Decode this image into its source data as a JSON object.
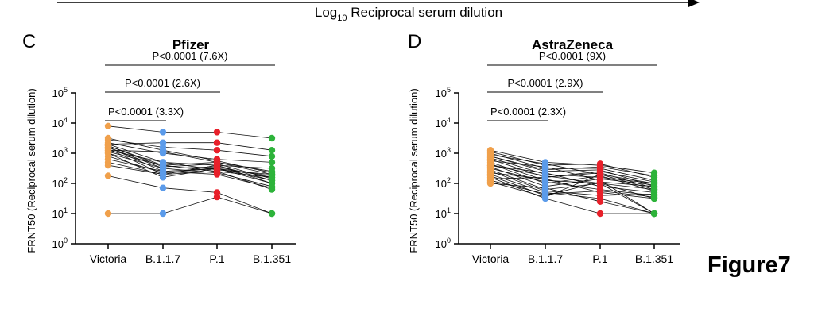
{
  "header": {
    "label_prefix": "Log",
    "label_sub": "10",
    "label_rest": " Reciprocal serum dilution"
  },
  "figure_label": "Figure7",
  "colors": {
    "Victoria": "#f0a04b",
    "B.1.1.7": "#5b9bea",
    "P.1": "#e8202a",
    "B.1.351": "#2db33a"
  },
  "chart_data": [
    {
      "panel": "C",
      "type": "scatter",
      "title": "Pfizer",
      "ylabel": "FRNT50  (Reciprocal serum dilution)",
      "yscale": "log10",
      "ylim": [
        1,
        100000
      ],
      "yticks": [
        {
          "base": "10",
          "exp": "0"
        },
        {
          "base": "10",
          "exp": "1"
        },
        {
          "base": "10",
          "exp": "2"
        },
        {
          "base": "10",
          "exp": "3"
        },
        {
          "base": "10",
          "exp": "4"
        },
        {
          "base": "10",
          "exp": "5"
        }
      ],
      "categories": [
        "Victoria",
        "B.1.1.7",
        "P.1",
        "B.1.351"
      ],
      "comparisons": [
        {
          "from": 0,
          "to": 3,
          "label": "P<0.0001 (7.6X)"
        },
        {
          "from": 0,
          "to": 2,
          "label": "P<0.0001 (2.6X)"
        },
        {
          "from": 0,
          "to": 1,
          "label": "P<0.0001 (3.3X)"
        }
      ],
      "log10_values_per_subject": [
        [
          3.9,
          3.7,
          3.7,
          3.5
        ],
        [
          3.3,
          3.35,
          3.35,
          3.1
        ],
        [
          3.45,
          3.2,
          3.1,
          2.9
        ],
        [
          3.35,
          3.0,
          2.8,
          2.7
        ],
        [
          3.3,
          2.7,
          2.6,
          2.5
        ],
        [
          3.25,
          2.6,
          2.7,
          2.3
        ],
        [
          3.2,
          2.5,
          2.55,
          2.2
        ],
        [
          3.2,
          2.4,
          2.5,
          2.1
        ],
        [
          3.15,
          2.3,
          2.6,
          2.0
        ],
        [
          3.1,
          2.7,
          2.45,
          2.3
        ],
        [
          3.05,
          2.6,
          2.4,
          2.2
        ],
        [
          3.0,
          2.5,
          2.35,
          1.9
        ],
        [
          2.9,
          2.35,
          2.5,
          2.0
        ],
        [
          2.8,
          2.4,
          2.3,
          1.85
        ],
        [
          2.7,
          2.3,
          2.6,
          2.1
        ],
        [
          2.6,
          2.3,
          2.4,
          1.8
        ],
        [
          3.1,
          3.05,
          2.7,
          2.4
        ],
        [
          2.25,
          1.85,
          1.7,
          1.0
        ],
        [
          1.0,
          1.0,
          1.55,
          1.0
        ],
        [
          3.0,
          2.2,
          2.5,
          2.25
        ],
        [
          3.5,
          3.1,
          2.75,
          2.35
        ],
        [
          3.25,
          2.55,
          2.65,
          2.15
        ]
      ]
    },
    {
      "panel": "D",
      "type": "scatter",
      "title": "AstraZeneca",
      "ylabel": "FRNT50  (Reciprocal serum dilution)",
      "yscale": "log10",
      "ylim": [
        1,
        100000
      ],
      "yticks": [
        {
          "base": "10",
          "exp": "0"
        },
        {
          "base": "10",
          "exp": "1"
        },
        {
          "base": "10",
          "exp": "2"
        },
        {
          "base": "10",
          "exp": "3"
        },
        {
          "base": "10",
          "exp": "4"
        },
        {
          "base": "10",
          "exp": "5"
        }
      ],
      "categories": [
        "Victoria",
        "B.1.1.7",
        "P.1",
        "B.1.351"
      ],
      "comparisons": [
        {
          "from": 0,
          "to": 3,
          "label": "P<0.0001 (9X)"
        },
        {
          "from": 0,
          "to": 2,
          "label": "P<0.0001 (2.9X)"
        },
        {
          "from": 0,
          "to": 1,
          "label": "P<0.0001 (2.3X)"
        }
      ],
      "log10_values_per_subject": [
        [
          3.1,
          2.7,
          2.6,
          2.35
        ],
        [
          3.05,
          2.6,
          2.65,
          2.2
        ],
        [
          3.0,
          2.5,
          2.5,
          2.1
        ],
        [
          2.95,
          2.65,
          2.3,
          2.0
        ],
        [
          2.9,
          2.4,
          2.45,
          1.9
        ],
        [
          2.85,
          2.3,
          2.2,
          2.0
        ],
        [
          2.8,
          2.2,
          2.35,
          1.85
        ],
        [
          2.75,
          2.55,
          2.1,
          1.0
        ],
        [
          2.7,
          2.1,
          2.0,
          1.8
        ],
        [
          2.65,
          2.0,
          2.25,
          1.75
        ],
        [
          2.6,
          2.35,
          1.9,
          1.7
        ],
        [
          2.55,
          1.9,
          2.15,
          1.95
        ],
        [
          2.5,
          2.05,
          1.8,
          1.6
        ],
        [
          2.45,
          1.8,
          2.0,
          1.0
        ],
        [
          2.4,
          1.75,
          1.6,
          1.65
        ],
        [
          2.35,
          2.15,
          1.7,
          1.5
        ],
        [
          2.3,
          1.7,
          1.5,
          1.0
        ],
        [
          2.25,
          1.6,
          2.05,
          1.9
        ],
        [
          2.2,
          1.5,
          1.0,
          1.0
        ],
        [
          2.15,
          2.2,
          2.4,
          2.05
        ],
        [
          2.1,
          1.65,
          1.75,
          1.55
        ],
        [
          2.05,
          1.55,
          2.3,
          1.8
        ],
        [
          2.0,
          1.85,
          1.4,
          1.0
        ],
        [
          2.9,
          2.45,
          2.55,
          2.25
        ],
        [
          2.6,
          2.25,
          2.0,
          1.5
        ]
      ]
    }
  ]
}
